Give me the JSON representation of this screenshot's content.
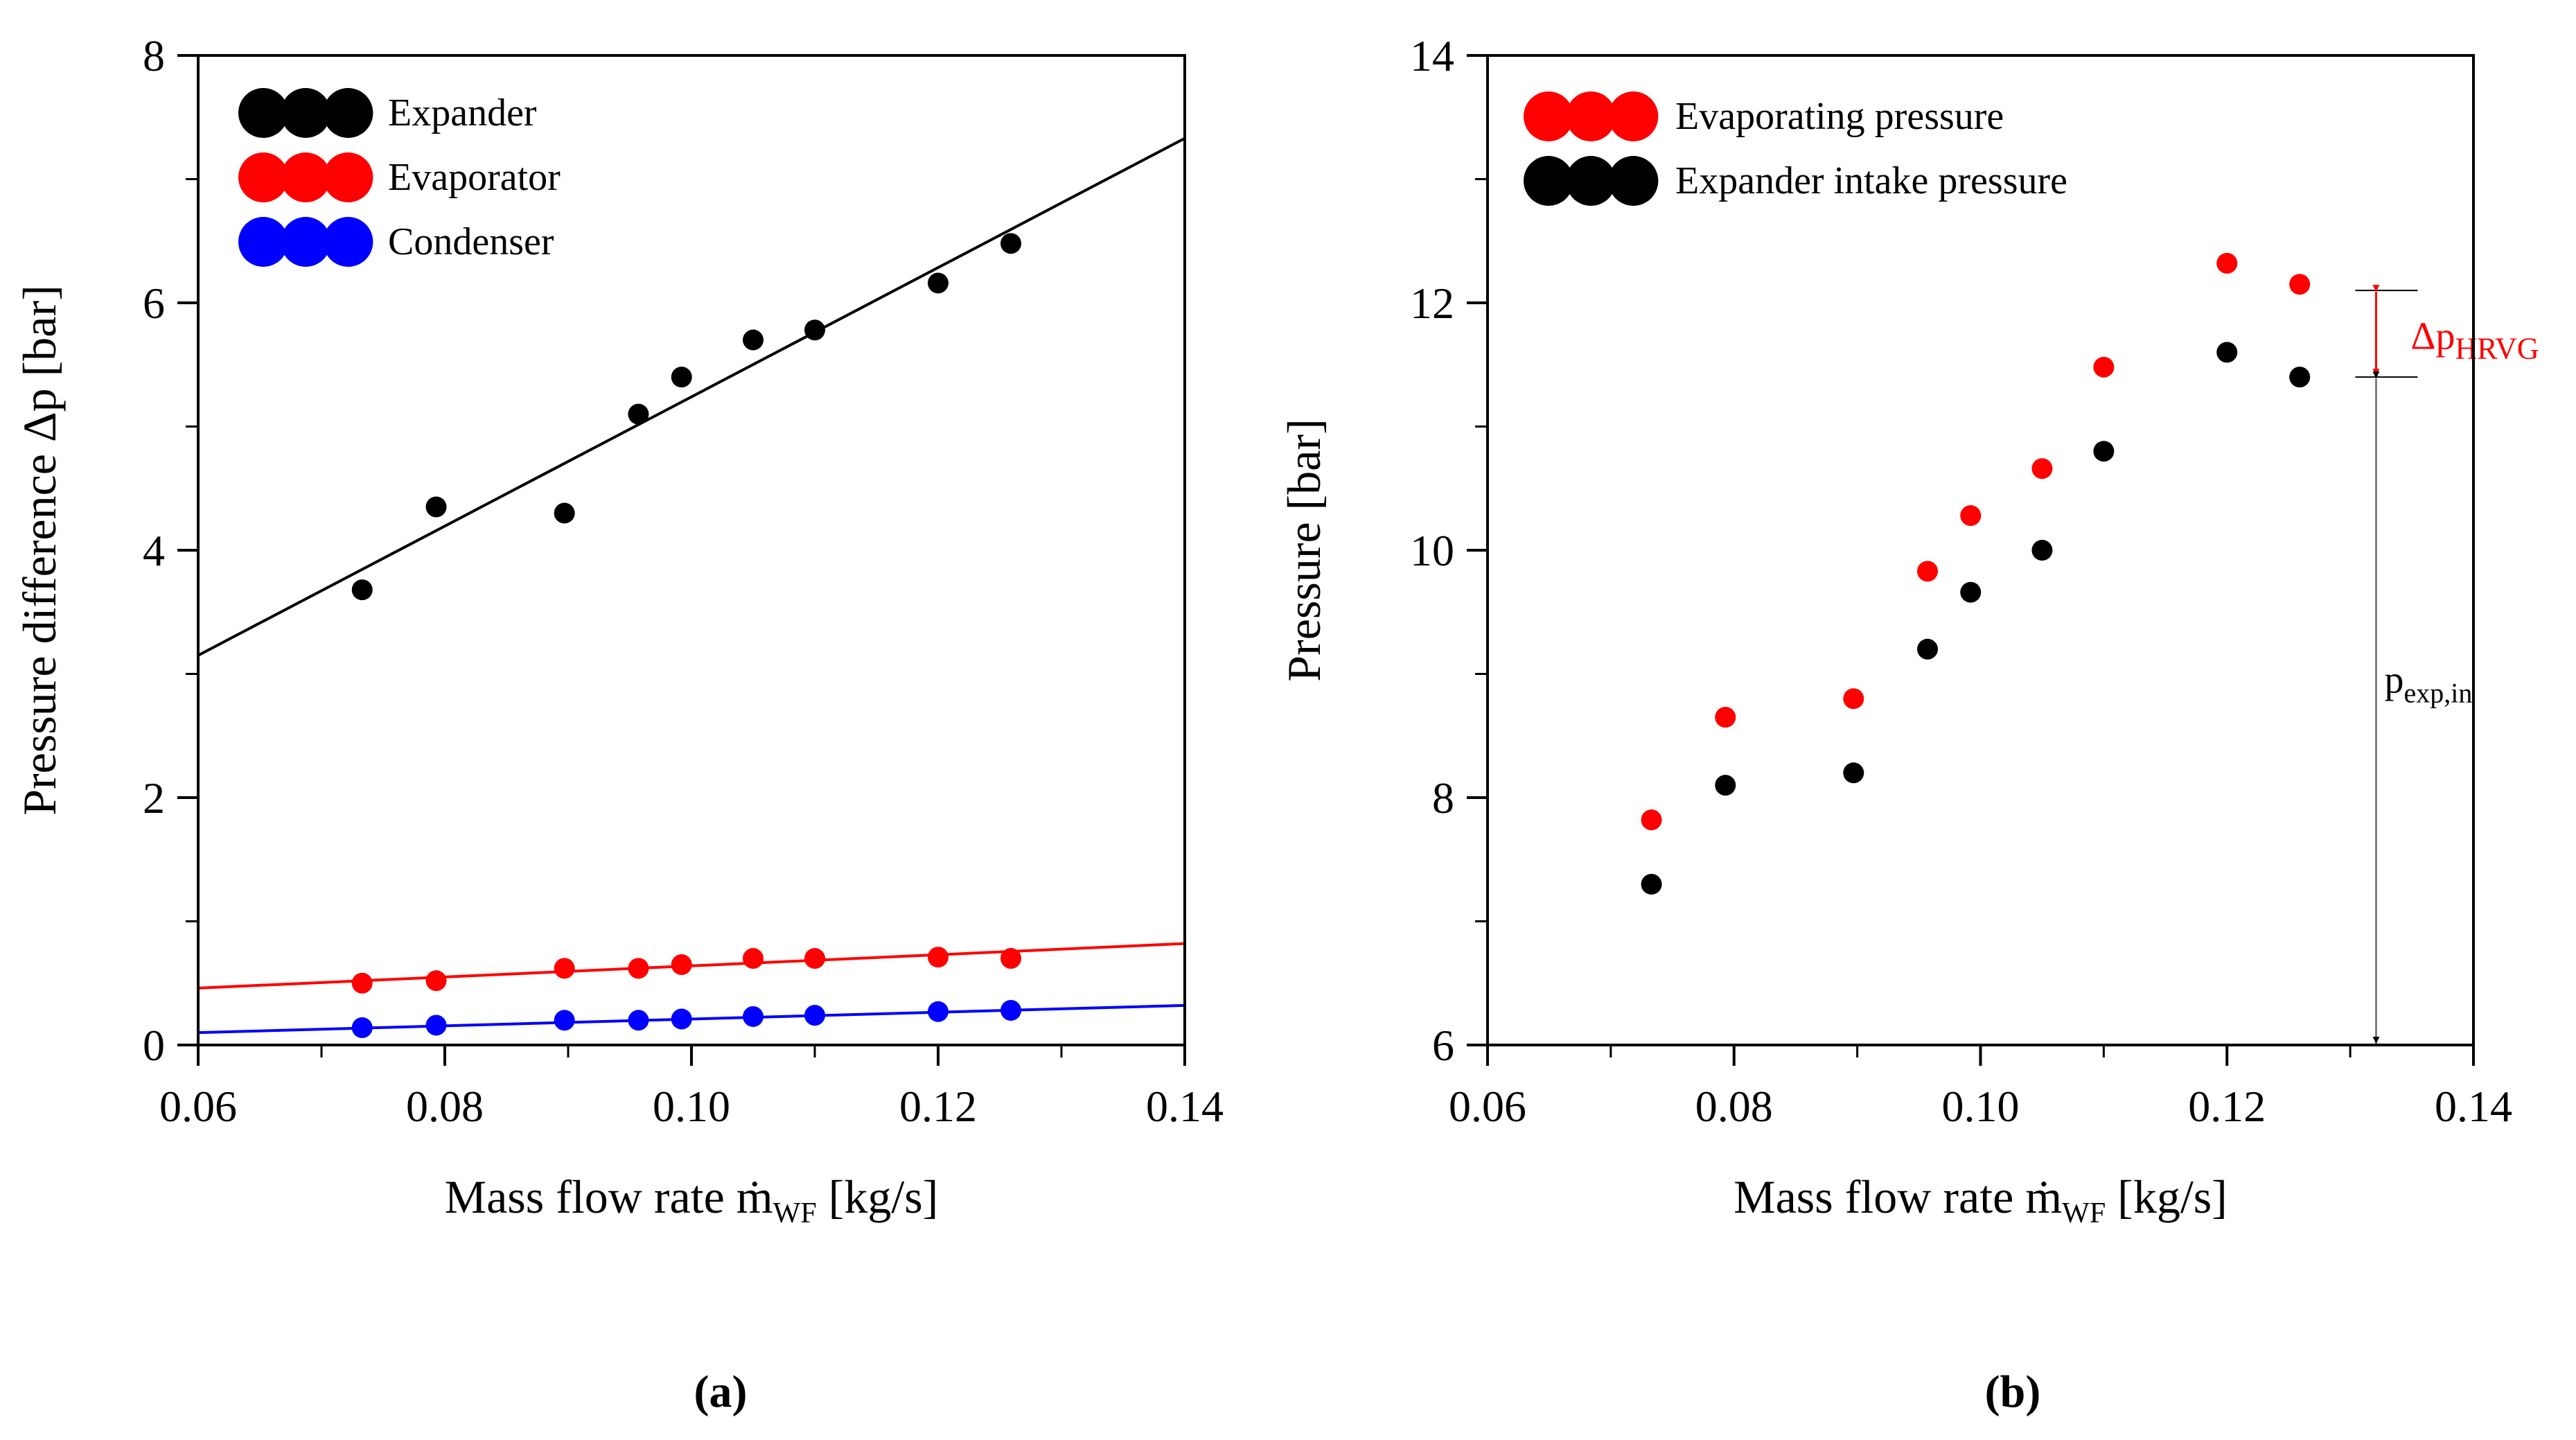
{
  "chart_data": [
    {
      "panel": "(a)",
      "type": "scatter",
      "title": "",
      "xlabel": "Mass flow rate ṁ",
      "xlabel_sub": "WF",
      "xlabel_unit": " [kg/s]",
      "ylabel": "Pressure difference Δp [bar]",
      "xlim": [
        0.06,
        0.14
      ],
      "ylim": [
        0,
        8
      ],
      "xticks": [
        0.06,
        0.08,
        0.1,
        0.12,
        0.14
      ],
      "xtick_labels": [
        "0.06",
        "0.08",
        "0.10",
        "0.12",
        "0.14"
      ],
      "yticks": [
        0,
        2,
        4,
        6,
        8
      ],
      "ytick_labels": [
        "0",
        "2",
        "4",
        "6",
        "8"
      ],
      "grid": false,
      "legend_position": "top-left",
      "x": [
        0.0733,
        0.0793,
        0.0897,
        0.0957,
        0.0992,
        0.105,
        0.11,
        0.12,
        0.1259
      ],
      "series": [
        {
          "name": "Expander",
          "color": "#000000",
          "values": [
            3.68,
            4.35,
            4.3,
            5.1,
            5.4,
            5.7,
            5.78,
            6.16,
            6.48
          ],
          "fit": [
            [
              0.06,
              3.15
            ],
            [
              0.14,
              7.33
            ]
          ]
        },
        {
          "name": "Evaporator",
          "color": "#ff0000",
          "values": [
            0.5,
            0.52,
            0.62,
            0.62,
            0.65,
            0.7,
            0.7,
            0.71,
            0.7
          ],
          "fit": [
            [
              0.06,
              0.46
            ],
            [
              0.14,
              0.82
            ]
          ]
        },
        {
          "name": "Condenser",
          "color": "#0000ff",
          "values": [
            0.14,
            0.16,
            0.2,
            0.2,
            0.21,
            0.23,
            0.24,
            0.27,
            0.28
          ],
          "fit": [
            [
              0.06,
              0.1
            ],
            [
              0.14,
              0.32
            ]
          ]
        }
      ]
    },
    {
      "panel": "(b)",
      "type": "scatter",
      "title": "",
      "xlabel": "Mass flow rate ṁ",
      "xlabel_sub": "WF",
      "xlabel_unit": " [kg/s]",
      "ylabel": "Pressure [bar]",
      "xlim": [
        0.06,
        0.14
      ],
      "ylim": [
        6,
        14
      ],
      "xticks": [
        0.06,
        0.08,
        0.1,
        0.12,
        0.14
      ],
      "xtick_labels": [
        "0.06",
        "0.08",
        "0.10",
        "0.12",
        "0.14"
      ],
      "yticks": [
        6,
        8,
        10,
        12,
        14
      ],
      "ytick_labels": [
        "6",
        "8",
        "10",
        "12",
        "14"
      ],
      "grid": false,
      "legend_position": "top-left",
      "x": [
        0.0733,
        0.0793,
        0.0897,
        0.0957,
        0.0992,
        0.105,
        0.11,
        0.12,
        0.1259
      ],
      "series": [
        {
          "name": "Evaporating pressure",
          "color": "#ff0000",
          "values": [
            7.82,
            8.65,
            8.8,
            9.83,
            10.28,
            10.66,
            11.48,
            12.32,
            12.15
          ]
        },
        {
          "name": "Expander intake pressure",
          "color": "#000000",
          "values": [
            7.3,
            8.1,
            8.2,
            9.2,
            9.66,
            10.0,
            10.8,
            11.6,
            11.4
          ]
        }
      ],
      "annotations": {
        "x": 0.1321,
        "dp_label": "Δp",
        "dp_sub": "HRVG",
        "dp_range": [
          11.4,
          12.1
        ],
        "dp_color": "#ff0000",
        "pexp_label": "p",
        "pexp_sub": "exp,in",
        "pexp_range": [
          6.0,
          11.4
        ],
        "pexp_color": "#000000"
      }
    }
  ]
}
